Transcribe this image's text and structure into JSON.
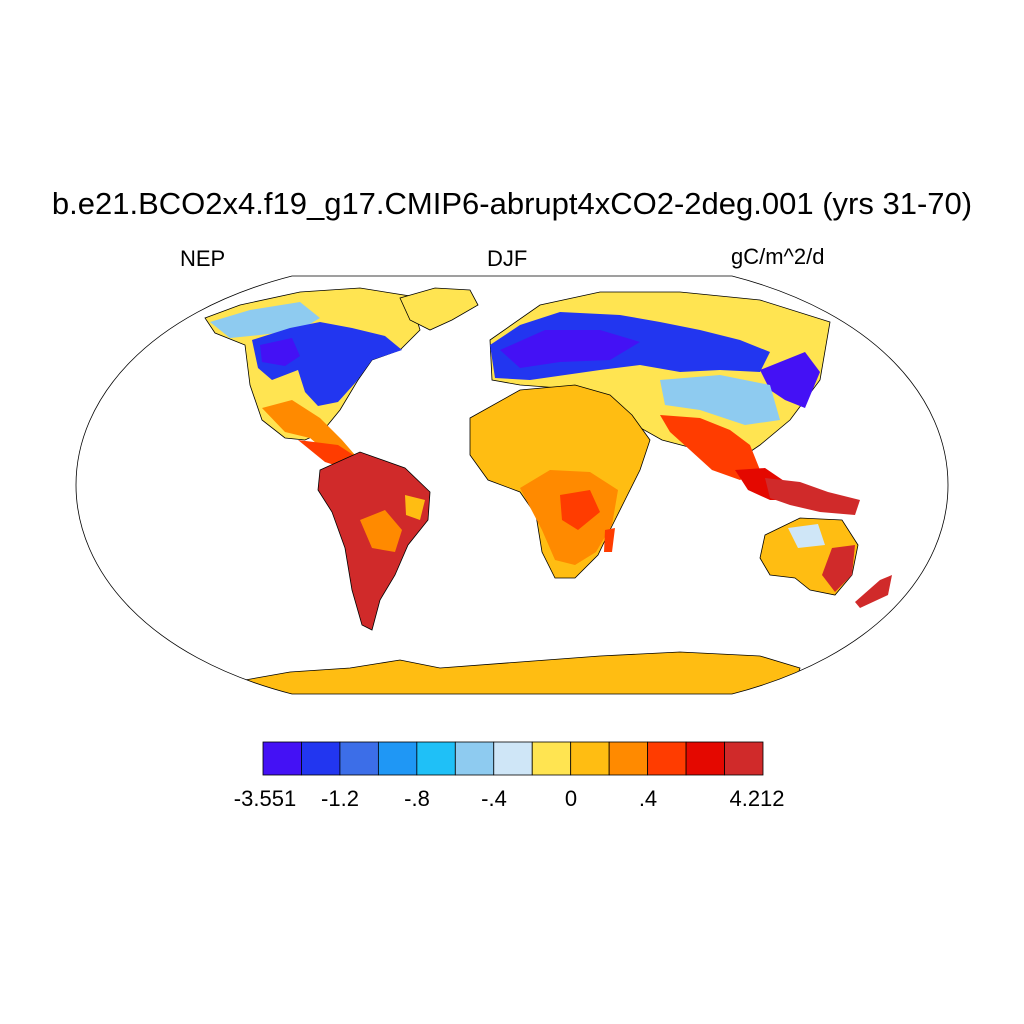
{
  "title": "b.e21.BCO2x4.f19_g17.CMIP6-abrupt4xCO2-2deg.001 (yrs 31-70)",
  "left_label": "NEP",
  "center_label": "DJF",
  "right_label": "gC/m^2/d",
  "colorbar": {
    "colors": [
      "#4411f5",
      "#2236f0",
      "#3c6ee8",
      "#1f97f5",
      "#1fc0f7",
      "#8ecbf0",
      "#cfe6f7",
      "#ffe451",
      "#ffbd12",
      "#ff8a00",
      "#ff3c00",
      "#e40800",
      "#d02a2a"
    ],
    "tick_labels": [
      "-3.551",
      "-1.2",
      "-.8",
      "-.4",
      "0",
      ".4",
      "4.212"
    ]
  }
}
